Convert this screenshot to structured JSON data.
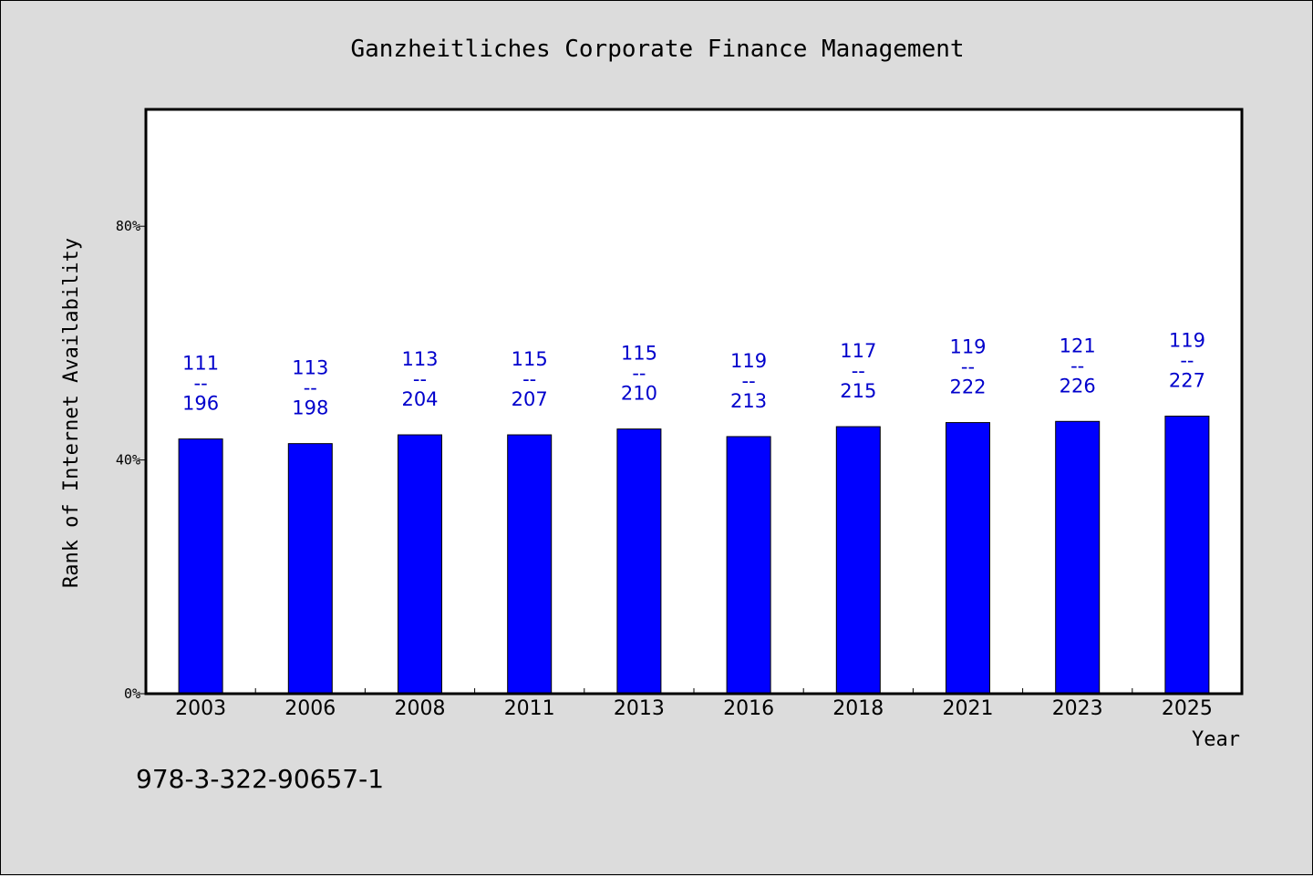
{
  "chart_data": {
    "type": "bar",
    "title": "Ganzheitliches Corporate Finance Management",
    "xlabel": "Year",
    "ylabel": "Rank of Internet Availability",
    "categories": [
      "2003",
      "2006",
      "2008",
      "2011",
      "2013",
      "2016",
      "2018",
      "2021",
      "2023",
      "2025"
    ],
    "series": [
      {
        "values": [
          43.6,
          42.8,
          44.3,
          44.3,
          45.3,
          44.0,
          45.7,
          46.4,
          46.6,
          47.5
        ],
        "color": "#0000ff"
      }
    ],
    "labels": [
      {
        "top": "111",
        "sep": "--",
        "bottom": "196"
      },
      {
        "top": "113",
        "sep": "--",
        "bottom": "198"
      },
      {
        "top": "113",
        "sep": "--",
        "bottom": "204"
      },
      {
        "top": "115",
        "sep": "--",
        "bottom": "207"
      },
      {
        "top": "115",
        "sep": "--",
        "bottom": "210"
      },
      {
        "top": "119",
        "sep": "--",
        "bottom": "213"
      },
      {
        "top": "117",
        "sep": "--",
        "bottom": "215"
      },
      {
        "top": "119",
        "sep": "--",
        "bottom": "222"
      },
      {
        "top": "121",
        "sep": "--",
        "bottom": "226"
      },
      {
        "top": "119",
        "sep": "--",
        "bottom": "227"
      }
    ],
    "yticks": [
      {
        "value": 0,
        "label": "0%"
      },
      {
        "value": 40,
        "label": "40%"
      },
      {
        "value": 80,
        "label": "80%"
      }
    ],
    "ylim": [
      0,
      100
    ],
    "grid": false,
    "label_color": "#0000cc"
  },
  "footnote": "978-3-322-90657-1"
}
